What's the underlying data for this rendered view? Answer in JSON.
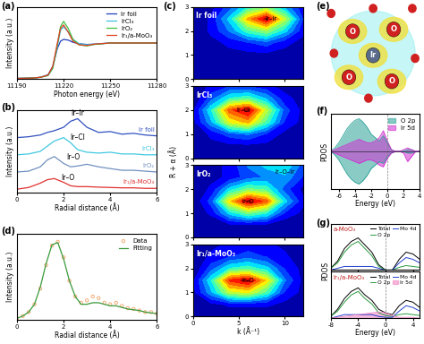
{
  "chart_data": [
    {
      "type": "line",
      "title": "(a)",
      "xlabel": "Photon energy (eV)",
      "ylabel": "Intensity (a.u.)",
      "xlim": [
        11190,
        11280
      ],
      "xticks": [
        11190,
        11220,
        11250,
        11280
      ],
      "ylim": [
        0,
        2.0
      ],
      "tick_labels": "x",
      "legend": "upper right",
      "x": [
        11190,
        11200,
        11205,
        11210,
        11213,
        11216,
        11218,
        11220,
        11223,
        11226,
        11230,
        11235,
        11240,
        11250,
        11260,
        11270,
        11280
      ],
      "series": [
        {
          "name": "Ir foil",
          "color": "#1f3fbf",
          "values": [
            0.02,
            0.03,
            0.05,
            0.12,
            0.35,
            0.85,
            1.05,
            1.1,
            1.08,
            1.02,
            0.98,
            0.96,
            0.97,
            1.0,
            1.0,
            1.0,
            1.0
          ]
        },
        {
          "name": "IrCl₃",
          "color": "#40c0e0",
          "values": [
            0.02,
            0.03,
            0.05,
            0.1,
            0.3,
            0.9,
            1.35,
            1.45,
            1.3,
            1.1,
            0.98,
            0.95,
            0.97,
            1.0,
            1.0,
            1.0,
            1.0
          ]
        },
        {
          "name": "IrO₂",
          "color": "#40c040",
          "values": [
            0.02,
            0.03,
            0.05,
            0.1,
            0.3,
            0.95,
            1.45,
            1.6,
            1.4,
            1.1,
            0.95,
            0.92,
            0.96,
            1.0,
            1.0,
            1.0,
            1.0
          ]
        },
        {
          "name": "Ir₁/a-MoO₃",
          "color": "#e04020",
          "values": [
            0.02,
            0.03,
            0.05,
            0.11,
            0.35,
            1.0,
            1.4,
            1.5,
            1.3,
            1.05,
            0.95,
            0.93,
            0.97,
            1.0,
            1.0,
            1.0,
            1.0
          ]
        }
      ]
    },
    {
      "type": "line",
      "title": "(b)",
      "xlabel": "Radial distance (Å)",
      "ylabel": "Intensity (a.u.)",
      "xlim": [
        0,
        6
      ],
      "xticks": [
        0,
        2,
        4,
        6
      ],
      "ylim": [
        -0.2,
        4.6
      ],
      "tick_labels": "x",
      "x": [
        0,
        0.5,
        1,
        1.3,
        1.6,
        2,
        2.3,
        2.6,
        3,
        3.5,
        4,
        4.5,
        5,
        5.5,
        6
      ],
      "series": [
        {
          "name": "Ir foil",
          "color": "#3050c0",
          "values": [
            3.0,
            3.05,
            3.15,
            3.3,
            3.4,
            3.6,
            3.95,
            4.1,
            3.6,
            3.3,
            3.35,
            3.2,
            3.25,
            3.15,
            3.1
          ]
        },
        {
          "name": "IrCl₃",
          "color": "#40c8e0",
          "values": [
            2.0,
            2.05,
            2.2,
            2.5,
            2.8,
            3.0,
            2.7,
            2.3,
            2.15,
            2.1,
            2.15,
            2.05,
            2.05,
            2.0,
            2.0
          ]
        },
        {
          "name": "IrO₂",
          "color": "#7090c0",
          "values": [
            1.0,
            1.05,
            1.3,
            1.7,
            1.9,
            1.5,
            1.3,
            1.35,
            1.45,
            1.3,
            1.2,
            1.1,
            1.1,
            1.05,
            1.0
          ]
        },
        {
          "name": "Ir₁/a-MoO₃",
          "color": "#e03030",
          "values": [
            0,
            0.1,
            0.35,
            0.55,
            0.62,
            0.4,
            0.2,
            0.15,
            0.15,
            0.12,
            0.1,
            0.08,
            0.08,
            0.05,
            0.05
          ]
        }
      ],
      "annotations": [
        {
          "text": "Ir–Ir",
          "x": 2.6,
          "y": 4.2
        },
        {
          "text": "Ir–Cl",
          "x": 2.6,
          "y": 2.75
        },
        {
          "text": "Ir–O",
          "x": 2.4,
          "y": 1.65
        },
        {
          "text": "Ir–O",
          "x": 2.2,
          "y": 0.45
        }
      ]
    },
    {
      "type": "contour",
      "title": "(c)",
      "xlabel": "k (Å⁻¹)",
      "ylabel": "R + α (Å)",
      "xlim": [
        0,
        12
      ],
      "xticks": [
        0,
        5,
        10
      ],
      "ylim": [
        0,
        3
      ],
      "yticks": [
        0,
        1,
        2,
        3
      ],
      "x": [
        0,
        2,
        4,
        6,
        8,
        10,
        12
      ],
      "y": [
        0,
        0.5,
        1.0,
        1.5,
        2.0,
        2.5,
        3.0
      ],
      "panels": [
        {
          "name": "Ir foil",
          "cells": [
            [
              0,
              0,
              0,
              0,
              0,
              0,
              0
            ],
            [
              0,
              0,
              0,
              0,
              0,
              0,
              0
            ],
            [
              0,
              0.05,
              0.05,
              0.05,
              0.05,
              0.05,
              0
            ],
            [
              0,
              0.05,
              0.1,
              0.15,
              0.2,
              0.1,
              0.05
            ],
            [
              0,
              0.1,
              0.25,
              0.45,
              0.55,
              0.35,
              0.1
            ],
            [
              0,
              0.1,
              0.35,
              0.75,
              1.0,
              0.6,
              0.15
            ],
            [
              0,
              0.05,
              0.2,
              0.4,
              0.5,
              0.3,
              0.1
            ]
          ],
          "annotations": [
            {
              "text": "Ir–Ir",
              "x": 8.5,
              "y": 2.5
            }
          ]
        },
        {
          "name": "IrCl₃",
          "cells": [
            [
              0,
              0,
              0,
              0,
              0,
              0,
              0
            ],
            [
              0,
              0.05,
              0.05,
              0.05,
              0.05,
              0,
              0
            ],
            [
              0,
              0.1,
              0.2,
              0.25,
              0.15,
              0.05,
              0
            ],
            [
              0.05,
              0.3,
              0.65,
              0.75,
              0.45,
              0.15,
              0.05
            ],
            [
              0.05,
              0.4,
              0.85,
              1.0,
              0.6,
              0.2,
              0.05
            ],
            [
              0,
              0.2,
              0.4,
              0.45,
              0.3,
              0.1,
              0.05
            ],
            [
              0,
              0.1,
              0.15,
              0.15,
              0.1,
              0.05,
              0
            ]
          ],
          "annotations": [
            {
              "text": "Ir–Cl",
              "x": 5.5,
              "y": 2.0
            }
          ]
        },
        {
          "name": "IrO₂",
          "cells": [
            [
              0,
              0,
              0,
              0,
              0,
              0,
              0
            ],
            [
              0,
              0,
              0.05,
              0.05,
              0.05,
              0,
              0
            ],
            [
              0,
              0.1,
              0.35,
              0.5,
              0.4,
              0.15,
              0.05
            ],
            [
              0,
              0.2,
              0.7,
              1.0,
              0.85,
              0.35,
              0.1
            ],
            [
              0,
              0.1,
              0.35,
              0.5,
              0.45,
              0.2,
              0.05
            ],
            [
              0,
              0.05,
              0.1,
              0.2,
              0.25,
              0.3,
              0.15
            ],
            [
              0,
              0.05,
              0.1,
              0.25,
              0.35,
              0.4,
              0.2
            ]
          ],
          "annotations": [
            {
              "text": "Ir–O",
              "x": 6,
              "y": 1.5
            },
            {
              "text": "Ir–O–Ir",
              "x": 10,
              "y": 2.7
            }
          ]
        },
        {
          "name": "Ir₁/a-MoO₃",
          "cells": [
            [
              0,
              0,
              0,
              0,
              0,
              0,
              0
            ],
            [
              0,
              0.05,
              0.1,
              0.1,
              0.1,
              0.05,
              0
            ],
            [
              0.05,
              0.3,
              0.6,
              0.65,
              0.45,
              0.15,
              0.05
            ],
            [
              0.05,
              0.4,
              0.9,
              1.0,
              0.7,
              0.25,
              0.05
            ],
            [
              0,
              0.2,
              0.4,
              0.45,
              0.35,
              0.15,
              0.05
            ],
            [
              0,
              0.1,
              0.15,
              0.2,
              0.15,
              0.1,
              0
            ],
            [
              0,
              0.05,
              0.1,
              0.1,
              0.1,
              0.05,
              0
            ]
          ],
          "annotations": [
            {
              "text": "Ir–O",
              "x": 6,
              "y": 1.5
            }
          ]
        }
      ]
    },
    {
      "type": "line",
      "title": "(d)",
      "xlabel": "Radial distance (Å)",
      "ylabel": "Intensity (a.u.)",
      "xlim": [
        0,
        6
      ],
      "xticks": [
        0,
        2,
        4,
        6
      ],
      "ylim": [
        0,
        1.1
      ],
      "tick_labels": "x",
      "legend": "upper right",
      "x": [
        0,
        0.25,
        0.5,
        0.75,
        1.0,
        1.25,
        1.5,
        1.75,
        2.0,
        2.25,
        2.5,
        2.75,
        3.0,
        3.25,
        3.5,
        3.75,
        4.0,
        4.25,
        4.5,
        4.75,
        5.0,
        5.25,
        5.5,
        5.75,
        6.0
      ],
      "series": [
        {
          "name": "Data",
          "type": "scatter",
          "marker": "o",
          "color": "#f0a060",
          "values": [
            0.02,
            0.05,
            0.1,
            0.2,
            0.4,
            0.7,
            0.95,
            1.0,
            0.8,
            0.5,
            0.3,
            0.22,
            0.25,
            0.3,
            0.28,
            0.22,
            0.2,
            0.22,
            0.18,
            0.15,
            0.14,
            0.12,
            0.1,
            0.1,
            0.08
          ]
        },
        {
          "name": "Fitting",
          "type": "line",
          "color": "#3a9a3a",
          "values": [
            0.02,
            0.05,
            0.1,
            0.2,
            0.42,
            0.72,
            0.96,
            0.99,
            0.78,
            0.5,
            0.3,
            0.2,
            0.2,
            0.22,
            0.22,
            0.2,
            0.18,
            0.18,
            0.16,
            0.14,
            0.13,
            0.12,
            0.1,
            0.09,
            0.08
          ]
        }
      ]
    },
    {
      "type": "diagram",
      "title": "(e)",
      "atoms": [
        "Ir",
        "O",
        "O",
        "O",
        "O"
      ]
    },
    {
      "type": "area",
      "title": "(f)",
      "xlabel": "Energy (eV)",
      "ylabel": "PDOS",
      "xlim": [
        -7,
        4
      ],
      "xticks": [
        -6,
        -4,
        -2,
        0,
        2,
        4
      ],
      "ylim": [
        -2.2,
        2.2
      ],
      "tick_labels": "x",
      "legend": "upper right",
      "fermi_level": 0,
      "x": [
        -7,
        -6.5,
        -6,
        -5.5,
        -5,
        -4.5,
        -4,
        -3.5,
        -3,
        -2.5,
        -2,
        -1.5,
        -1,
        -0.5,
        0,
        0.5,
        1,
        1.5,
        2,
        2.5,
        3,
        3.5,
        4
      ],
      "series": [
        {
          "name": "O 2p",
          "color": "#2aa198",
          "values": [
            0,
            0.2,
            0.5,
            0.9,
            1.3,
            1.6,
            1.8,
            1.9,
            1.7,
            1.4,
            1.0,
            0.8,
            0.6,
            0.9,
            0.5,
            0.1,
            0,
            0,
            0,
            0.1,
            0.1,
            0,
            0
          ],
          "spin_down": [
            0,
            -0.2,
            -0.5,
            -0.9,
            -1.3,
            -1.6,
            -1.8,
            -1.9,
            -1.7,
            -1.4,
            -1.0,
            -0.8,
            -0.6,
            -0.7,
            -0.3,
            -0.1,
            0,
            0,
            0,
            -0.1,
            -0.1,
            0,
            0
          ]
        },
        {
          "name": "Ir 5d",
          "color": "#d030d0",
          "values": [
            0,
            0.1,
            0.2,
            0.3,
            0.4,
            0.5,
            0.6,
            0.7,
            0.6,
            0.5,
            0.5,
            0.6,
            0.8,
            1.2,
            0.6,
            0.1,
            0,
            0,
            0.1,
            0.2,
            0.1,
            0,
            0
          ],
          "spin_down": [
            0,
            -0.1,
            -0.2,
            -0.3,
            -0.4,
            -0.5,
            -0.6,
            -0.7,
            -0.6,
            -0.5,
            -0.5,
            -0.6,
            -0.8,
            -0.9,
            -0.4,
            -0.1,
            0,
            0,
            -0.1,
            -0.6,
            -0.3,
            0,
            0
          ]
        }
      ]
    },
    {
      "type": "area",
      "title": "(g)",
      "xlabel": "Energy (eV)",
      "ylabel": "PDOS",
      "xlim": [
        -8,
        5
      ],
      "xticks": [
        -8,
        -4,
        0,
        4
      ],
      "ylim": [
        0,
        2.6
      ],
      "tick_labels": "x",
      "legend": "upper right",
      "fermi_level": 0,
      "x": [
        -8,
        -7,
        -6,
        -5,
        -4,
        -3,
        -2,
        -1,
        0,
        1,
        2,
        3,
        4,
        5
      ],
      "panels": [
        {
          "title": "a-MoO₃",
          "series": [
            {
              "name": "Total",
              "type": "line",
              "color": "#000000",
              "values": [
                0.1,
                0.5,
                1.2,
                1.6,
                1.8,
                1.4,
                1.0,
                0.3,
                0,
                0,
                0.6,
                1.0,
                0.9,
                0.6
              ]
            },
            {
              "name": "O 2p",
              "type": "line",
              "color": "#2a9a40",
              "values": [
                0.1,
                0.4,
                1.0,
                1.4,
                1.6,
                1.2,
                0.8,
                0.2,
                0,
                0,
                0.15,
                0.25,
                0.2,
                0.15
              ]
            },
            {
              "name": "Mo 4d",
              "type": "line",
              "color": "#2040d0",
              "values": [
                0,
                0.1,
                0.2,
                0.2,
                0.2,
                0.2,
                0.2,
                0.1,
                0,
                0,
                0.4,
                0.7,
                0.6,
                0.4
              ]
            }
          ]
        },
        {
          "title": "Ir₁/a-MoO₃",
          "series": [
            {
              "name": "Total",
              "type": "line",
              "color": "#000000",
              "values": [
                0.1,
                0.5,
                1.1,
                1.5,
                1.7,
                1.3,
                1.0,
                0.5,
                0.3,
                0.2,
                0.7,
                1.0,
                0.9,
                0.6
              ]
            },
            {
              "name": "O 2p",
              "type": "line",
              "color": "#2a9a40",
              "values": [
                0.1,
                0.4,
                0.9,
                1.3,
                1.5,
                1.1,
                0.8,
                0.3,
                0.15,
                0.1,
                0.2,
                0.25,
                0.2,
                0.15
              ]
            },
            {
              "name": "Mo 4d",
              "type": "line",
              "color": "#2040d0",
              "values": [
                0,
                0.1,
                0.2,
                0.2,
                0.2,
                0.2,
                0.2,
                0.1,
                0.05,
                0.05,
                0.4,
                0.7,
                0.6,
                0.4
              ]
            },
            {
              "name": "Ir 5d",
              "type": "area",
              "color": "#f080c0",
              "values": [
                0,
                0.05,
                0.1,
                0.15,
                0.2,
                0.25,
                0.3,
                0.35,
                0.3,
                0.15,
                0.05,
                0.05,
                0.05,
                0
              ]
            }
          ]
        }
      ]
    }
  ]
}
